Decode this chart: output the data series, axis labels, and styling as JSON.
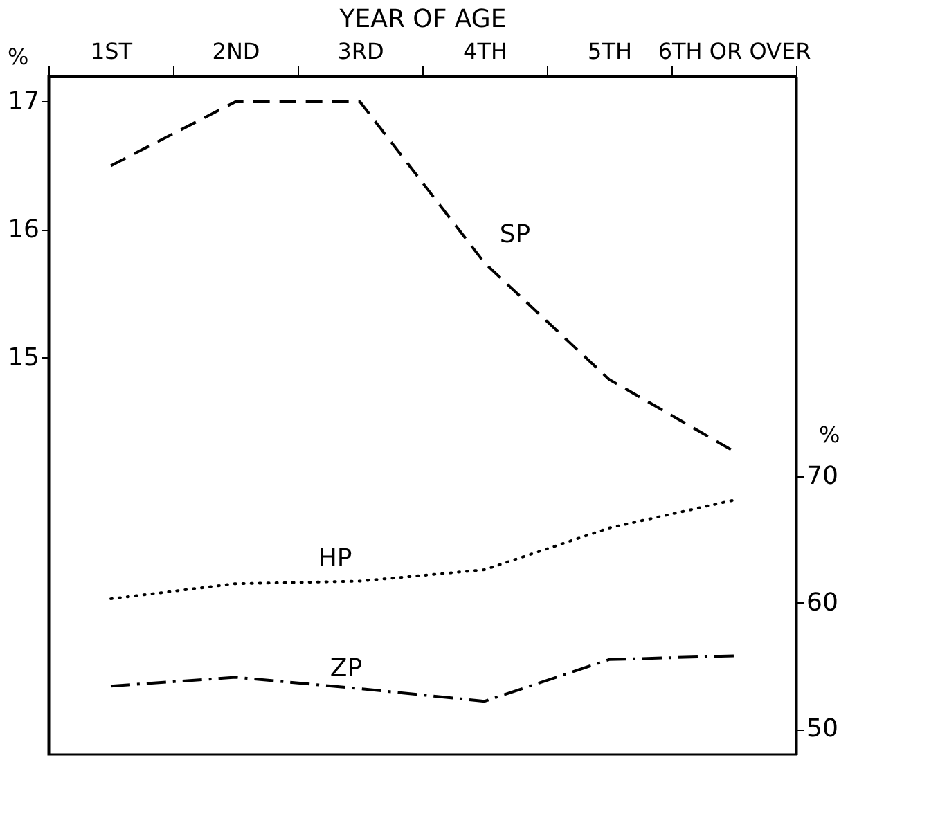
{
  "chart_data": {
    "type": "line",
    "xlabel": "YEAR OF AGE",
    "ylabel": "%",
    "y2label": "%",
    "categories": [
      "1ST",
      "2ND",
      "3RD",
      "4TH",
      "5TH",
      "6TH OR OVER"
    ],
    "series": [
      {
        "name": "SP",
        "color": "#000000",
        "line_style": "dashed",
        "values": [
          16.5,
          17.0,
          17.0,
          15.74,
          14.83,
          14.27
        ]
      },
      {
        "name": "HP",
        "color": "#000000",
        "line_style": "dotted",
        "axis": "y2",
        "values": [
          60.3,
          61.5,
          61.7,
          62.6,
          65.9,
          68.1
        ]
      },
      {
        "name": "ZP",
        "color": "#000000",
        "line_style": "dashdot",
        "axis": "y2",
        "values": [
          53.4,
          54.1,
          53.2,
          52.2,
          55.5,
          55.8
        ]
      }
    ],
    "ylim": [
      11.9,
      17.2
    ],
    "yticks": [
      15,
      16,
      17
    ],
    "y2lim": [
      48,
      101.6
    ],
    "y2ticks": [
      50,
      60,
      70
    ],
    "grid": false,
    "marker": "none"
  }
}
